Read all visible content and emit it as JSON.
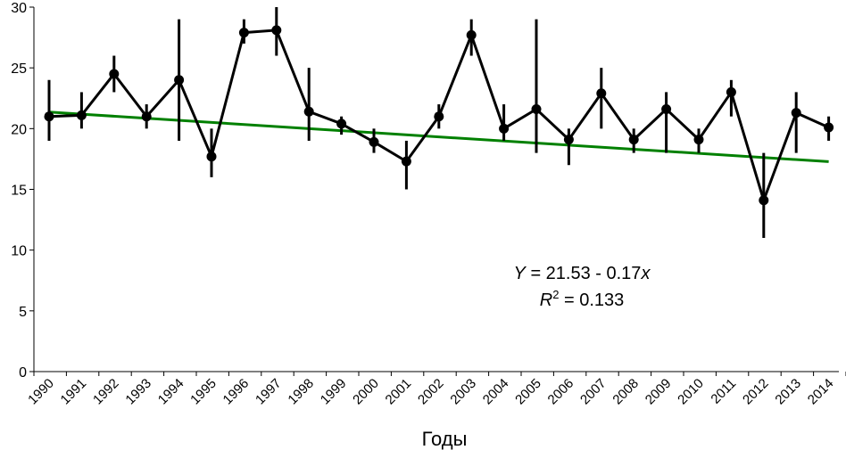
{
  "chart_data": {
    "type": "line",
    "xlabel": "Годы",
    "ylabel": "",
    "ylim": [
      0,
      30
    ],
    "yticks": [
      0,
      5,
      10,
      15,
      20,
      25,
      30
    ],
    "grid": false,
    "categories": [
      "1990",
      "1991",
      "1992",
      "1993",
      "1994",
      "1995",
      "1996",
      "1997",
      "1998",
      "1999",
      "2000",
      "2001",
      "2002",
      "2003",
      "2004",
      "2005",
      "2006",
      "2007",
      "2008",
      "2009",
      "2010",
      "2011",
      "2012",
      "2013",
      "2014"
    ],
    "series": [
      {
        "values": [
          21.0,
          21.1,
          24.5,
          21.0,
          24.0,
          17.7,
          27.9,
          28.1,
          21.4,
          20.4,
          18.9,
          17.3,
          21.0,
          27.7,
          20.0,
          21.6,
          19.1,
          22.9,
          19.1,
          21.6,
          19.1,
          23.0,
          14.1,
          21.3,
          20.1
        ],
        "err_low": [
          19.0,
          20.0,
          23.0,
          20.0,
          19.0,
          16.0,
          27.0,
          26.0,
          19.0,
          19.5,
          18.0,
          15.0,
          20.0,
          26.0,
          19.0,
          18.0,
          17.0,
          20.0,
          18.0,
          18.0,
          18.0,
          21.0,
          11.0,
          18.0,
          19.0
        ],
        "err_high": [
          24.0,
          23.0,
          26.0,
          22.0,
          29.0,
          20.0,
          29.0,
          30.0,
          25.0,
          21.0,
          20.0,
          19.0,
          22.0,
          29.0,
          22.0,
          29.0,
          20.0,
          25.0,
          20.0,
          23.0,
          20.0,
          24.0,
          18.0,
          23.0,
          21.0
        ],
        "color": "#000000"
      }
    ],
    "trendline": {
      "intercept": 21.53,
      "slope": -0.17,
      "color": "#008000"
    },
    "annotation": {
      "equation_prefix": "Y",
      "equation_rest": " = 21.53 - 0.17",
      "equation_var": "x",
      "r2_prefix": "R",
      "r2_sup": "2",
      "r2_rest": " = 0.133"
    }
  }
}
